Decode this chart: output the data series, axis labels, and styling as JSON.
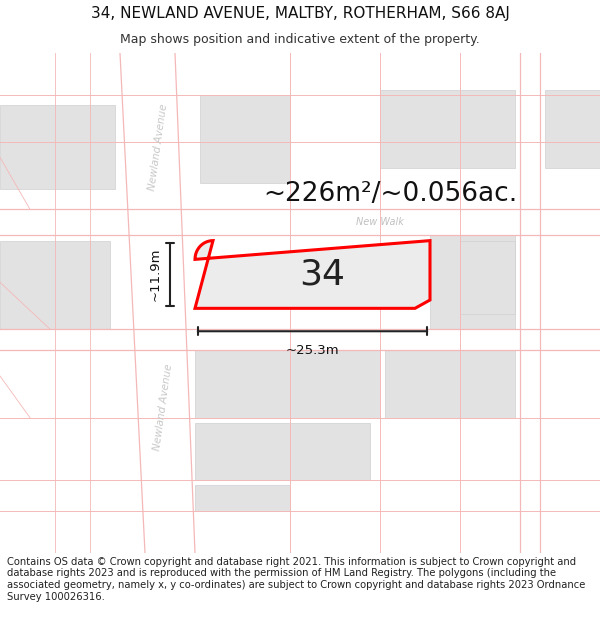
{
  "title_line1": "34, NEWLAND AVENUE, MALTBY, ROTHERHAM, S66 8AJ",
  "title_line2": "Map shows position and indicative extent of the property.",
  "area_label": "~226m²/~0.056ac.",
  "width_label": "~25.3m",
  "height_label": "~11.9m",
  "number_label": "34",
  "footer_text": "Contains OS data © Crown copyright and database right 2021. This information is subject to Crown copyright and database rights 2023 and is reproduced with the permission of HM Land Registry. The polygons (including the associated geometry, namely x, y co-ordinates) are subject to Crown copyright and database rights 2023 Ordnance Survey 100026316.",
  "bg_color": "#ffffff",
  "map_bg": "#f0f0f0",
  "building_color": "#e2e2e2",
  "boundary_color": "#ff0000",
  "pink": "#f5b8b8",
  "dim_color": "#222222",
  "street_color": "#c8c8c8",
  "title_fontsize": 11,
  "subtitle_fontsize": 9,
  "area_fontsize": 19,
  "number_fontsize": 26,
  "footer_fontsize": 7.2
}
